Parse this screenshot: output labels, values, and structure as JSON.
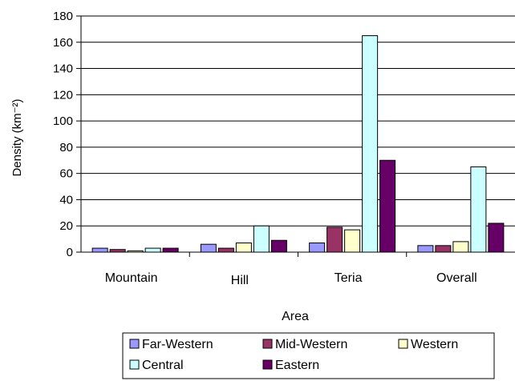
{
  "chart_data": {
    "type": "bar",
    "title": "",
    "xlabel": "Area",
    "ylabel": "Density (km⁻²)",
    "ylim": [
      0,
      180
    ],
    "ytick_step": 20,
    "grid": "horizontal",
    "legend_position": "bottom",
    "categories": [
      "Mountain",
      "Hill",
      "Teria",
      "Overall"
    ],
    "series": [
      {
        "name": "Far-Western",
        "color": "#9999ff",
        "values": [
          3,
          6,
          7,
          5
        ]
      },
      {
        "name": "Mid-Western",
        "color": "#993366",
        "values": [
          2,
          3,
          19,
          5
        ]
      },
      {
        "name": "Western",
        "color": "#ffffcc",
        "values": [
          1,
          7,
          17,
          8
        ]
      },
      {
        "name": "Central",
        "color": "#ccffff",
        "values": [
          3,
          20,
          165,
          65
        ]
      },
      {
        "name": "Eastern",
        "color": "#660066",
        "values": [
          3,
          9,
          70,
          22
        ]
      }
    ]
  }
}
